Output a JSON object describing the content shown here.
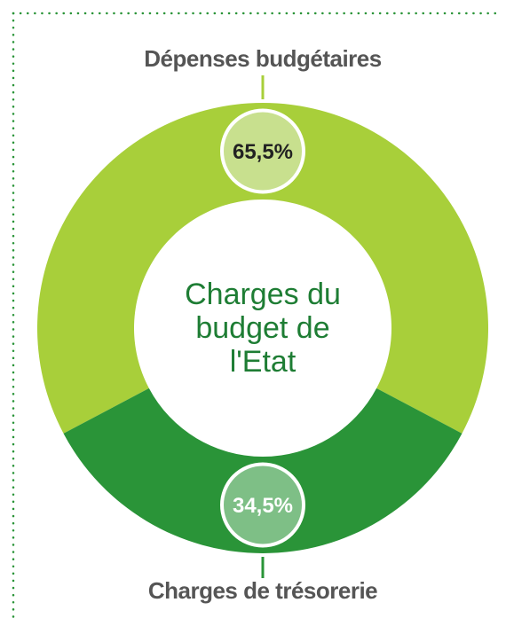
{
  "chart_data": {
    "type": "pie",
    "donut": true,
    "categories": [
      "Dépenses budgétaires",
      "Charges de trésorerie"
    ],
    "values": [
      65.5,
      34.5
    ],
    "value_labels": [
      "65,5%",
      "34,5%"
    ],
    "colors": [
      "#a8cf3a",
      "#2a9438"
    ],
    "center_label": "Charges du budget de l'Etat"
  }
}
